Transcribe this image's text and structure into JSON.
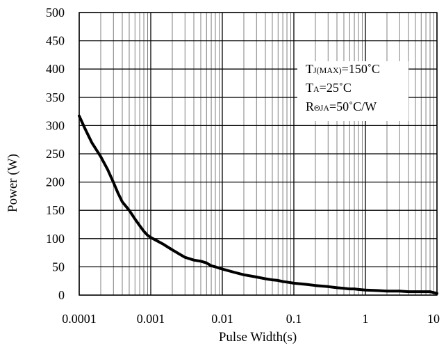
{
  "chart_data": {
    "type": "line",
    "title": "",
    "xlabel": "Pulse Width(s)",
    "ylabel": "Power (W)",
    "x_scale": "log",
    "xlim": [
      0.0001,
      10
    ],
    "ylim": [
      0,
      500
    ],
    "x_ticks": [
      "0.0001",
      "0.001",
      "0.01",
      "0.1",
      "1",
      "10"
    ],
    "y_ticks": [
      "0",
      "50",
      "100",
      "150",
      "200",
      "250",
      "300",
      "350",
      "400",
      "450",
      "500"
    ],
    "grid": true,
    "annotations": [
      {
        "main": "T",
        "sub": "J(MAX)",
        "rest": "=150˚C"
      },
      {
        "main": "T",
        "sub": "A",
        "rest": "=25˚C"
      },
      {
        "main": "R",
        "sub": "ΘJA",
        "rest": "=50˚C/W"
      }
    ],
    "series": [
      {
        "color": "#000000",
        "x": [
          0.0001,
          0.00012,
          0.00015,
          0.0002,
          0.00025,
          0.0003,
          0.00035,
          0.0004,
          0.0005,
          0.0006,
          0.0007,
          0.0008,
          0.0009,
          0.001,
          0.0015,
          0.002,
          0.003,
          0.004,
          0.005,
          0.006,
          0.007,
          0.008,
          0.01,
          0.015,
          0.02,
          0.03,
          0.04,
          0.05,
          0.06,
          0.07,
          0.08,
          0.1,
          0.15,
          0.2,
          0.3,
          0.4,
          0.5,
          0.6,
          0.7,
          0.8,
          1,
          1.5,
          2,
          3,
          4,
          5,
          6,
          7,
          8,
          10
        ],
        "y": [
          317,
          295,
          270,
          245,
          222,
          200,
          180,
          165,
          150,
          135,
          123,
          113,
          106,
          102,
          90,
          80,
          67,
          62,
          60,
          57,
          52,
          50,
          46,
          40,
          36,
          32,
          29,
          27,
          26,
          24,
          23,
          21,
          19,
          17,
          15,
          13,
          12,
          11,
          11,
          10,
          9,
          8,
          7,
          7,
          6,
          6,
          6,
          6,
          6,
          3
        ]
      }
    ]
  }
}
